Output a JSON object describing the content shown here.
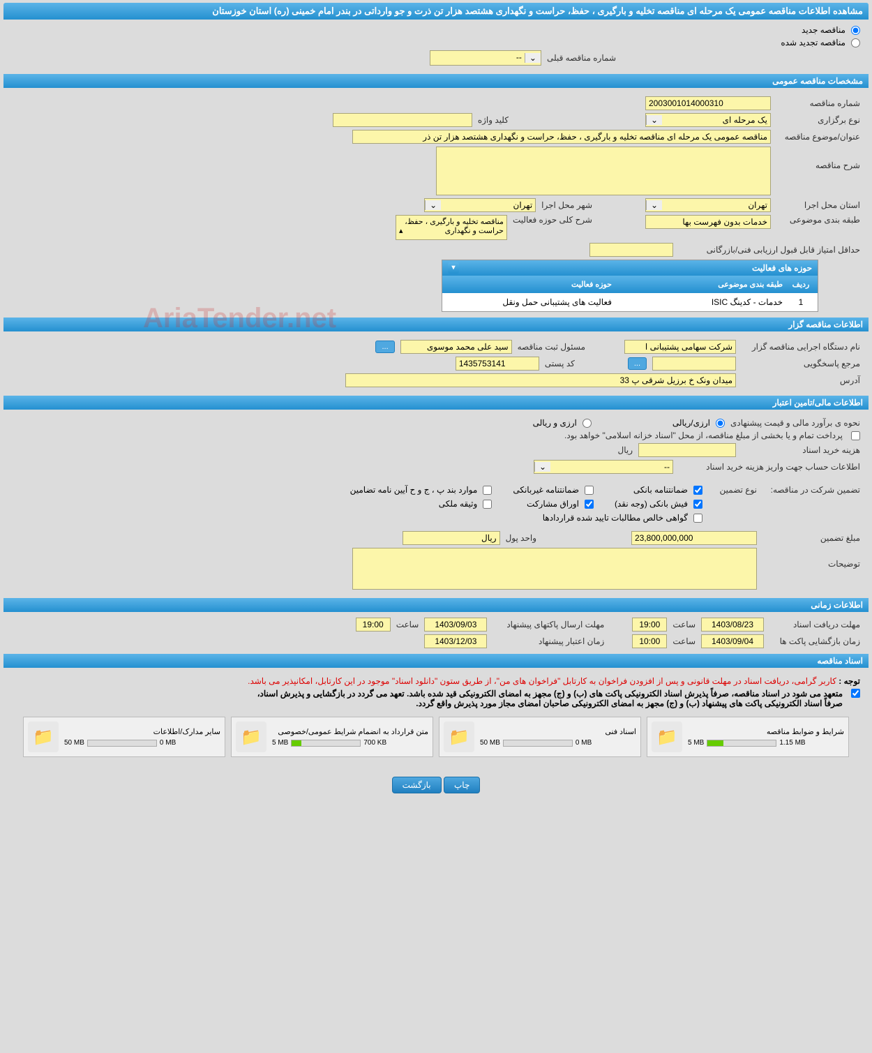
{
  "page_title": "مشاهده اطلاعات مناقصه عمومی یک مرحله ای مناقصه تخلیه و بارگیری ، حفظ، حراست و نگهداری هشتصد هزار تن ذرت و جو وارداتی در بندر امام خمینی (ره) استان خوزستان",
  "radio_new": "مناقصه جدید",
  "radio_renew": "مناقصه تجدید شده",
  "prev_tender_label": "شماره مناقصه قبلی",
  "prev_tender_value": "--",
  "section_general": "مشخصات مناقصه عمومی",
  "tender_no_label": "شماره مناقصه",
  "tender_no_value": "2003001014000310",
  "holding_type_label": "نوع برگزاری",
  "holding_type_value": "یک مرحله ای",
  "keyword_label": "کلید واژه",
  "keyword_value": "",
  "subject_label": "عنوان/موضوع مناقصه",
  "subject_value": "مناقصه عمومی یک مرحله ای مناقصه تخلیه و بارگیری ، حفظ، حراست و نگهداری هشتصد هزار تن ذر",
  "desc_label": "شرح مناقصه",
  "desc_value": "",
  "province_label": "استان محل اجرا",
  "province_value": "تهران",
  "city_label": "شهر محل اجرا",
  "city_value": "تهران",
  "category_label": "طبقه بندی موضوعی",
  "category_value": "خدمات بدون فهرست بها",
  "activity_scope_label": "شرح کلی حوزه فعالیت",
  "activity_scope_value": "مناقصه تخلیه و بارگیری ، حفظ، حراست و نگهداری",
  "min_score_label": "حداقل امتیاز قابل قبول ارزیابی فنی/بازرگانی",
  "min_score_value": "",
  "activity_table_title": "حوزه های فعالیت",
  "activity_table_cols": {
    "idx": "ردیف",
    "cat": "طبقه بندی موضوعی",
    "act": "حوزه فعالیت"
  },
  "activity_rows": [
    {
      "idx": "1",
      "cat": "خدمات - کدینگ ISIC",
      "act": "فعالیت های پشتیبانی حمل ونقل"
    }
  ],
  "section_owner": "اطلاعات مناقصه گزار",
  "owner_org_label": "نام دستگاه اجرایی مناقصه گزار",
  "owner_org_value": "شرکت سهامی پشتیبانی ا",
  "owner_reg_label": "مسئول ثبت مناقصه",
  "owner_reg_value": "سید علی محمد موسوی",
  "more_btn": "...",
  "resp_label": "مرجع پاسخگویی",
  "resp_value": "",
  "postal_label": "کد پستی",
  "postal_value": "1435753141",
  "address_label": "آدرس",
  "address_value": "میدان ونک خ برزیل شرقی پ 33",
  "section_finance": "اطلاعات مالی/تامین اعتبار",
  "estimate_method_label": "نحوه ی برآورد مالی و قیمت پیشنهادی",
  "radio_rial": "ارزی/ریالی",
  "radio_fx": "ارزی و ریالی",
  "treasury_note": "پرداخت تمام و یا بخشی از مبلغ مناقصه، از محل \"اسناد خزانه اسلامی\" خواهد بود.",
  "doc_cost_label": "هزینه خرید اسناد",
  "doc_cost_value": "",
  "rial_unit": "ریال",
  "deposit_account_label": "اطلاعات حساب جهت واریز هزینه خرید اسناد",
  "deposit_account_value": "--",
  "guarantee_label": "تضمین شرکت در مناقصه:",
  "guarantee_type_label": "نوع تضمین",
  "chk_bank_guarantee": "ضمانتنامه بانکی",
  "chk_nonbank_guarantee": "ضمانتنامه غیربانکی",
  "chk_regs": "موارد بند پ ، ج و ح آیین نامه تضامین",
  "chk_cash": "فیش بانکی (وجه نقد)",
  "chk_bonds": "اوراق مشارکت",
  "chk_property": "وثیقه ملکی",
  "chk_receivables": "گواهی خالص مطالبات تایید شده قراردادها",
  "guarantee_amount_label": "مبلغ تضمین",
  "guarantee_amount_value": "23,800,000,000",
  "currency_label": "واحد پول",
  "currency_value": "ریال",
  "notes_label": "توضیحات",
  "notes_value": "",
  "section_time": "اطلاعات زمانی",
  "time_unit": "ساعت",
  "receive_deadline_label": "مهلت دریافت اسناد",
  "receive_date": "1403/08/23",
  "receive_time": "19:00",
  "send_deadline_label": "مهلت ارسال پاکتهای پیشنهاد",
  "send_date": "1403/09/03",
  "send_time": "19:00",
  "open_label": "زمان بازگشایی پاکت ها",
  "open_date": "1403/09/04",
  "open_time": "10:00",
  "validity_label": "زمان اعتبار پیشنهاد",
  "validity_date": "1403/12/03",
  "section_docs": "اسناد مناقصه",
  "notice_label": "توجه : ",
  "notice_text": "کاربر گرامی، دریافت اسناد در مهلت قانونی و پس از افزودن فراخوان به کارتابل \"فراخوان های من\"، از طریق ستون \"دانلود اسناد\" موجود در این کارتابل، امکانپذیر می باشد.",
  "commit_text_1": "متعهد می شود در اسناد مناقصه، صرفاً پذیرش اسناد الکترونیکی پاکت های (ب) و (ج) مجهز به امضای الکترونیکی قید شده باشد. تعهد می گردد در بازگشایی و پذیرش اسناد،",
  "commit_text_2": "صرفاً اسناد الکترونیکی پاکت های پیشنهاد (ب) و (ج) مجهز به امضای الکترونیکی صاحبان امضای مجاز مورد پذیرش واقع گردد.",
  "docs": [
    {
      "title": "شرایط و ضوابط مناقصه",
      "cap": "5 MB",
      "used": "1.15 MB",
      "pct": 23
    },
    {
      "title": "اسناد فنی",
      "cap": "50 MB",
      "used": "0 MB",
      "pct": 0
    },
    {
      "title": "متن قرارداد به انضمام شرایط عمومی/خصوصی",
      "cap": "5 MB",
      "used": "700 KB",
      "pct": 14
    },
    {
      "title": "سایر مدارک/اطلاعات",
      "cap": "50 MB",
      "used": "0 MB",
      "pct": 0
    }
  ],
  "btn_print": "چاپ",
  "btn_back": "بازگشت",
  "watermark": "AriaTender.net",
  "colors": {
    "header_top": "#5bb4e8",
    "header_bottom": "#2490d0",
    "field_bg": "#fcf6aa",
    "page_bg": "#dcdcdc",
    "red": "#d00"
  }
}
